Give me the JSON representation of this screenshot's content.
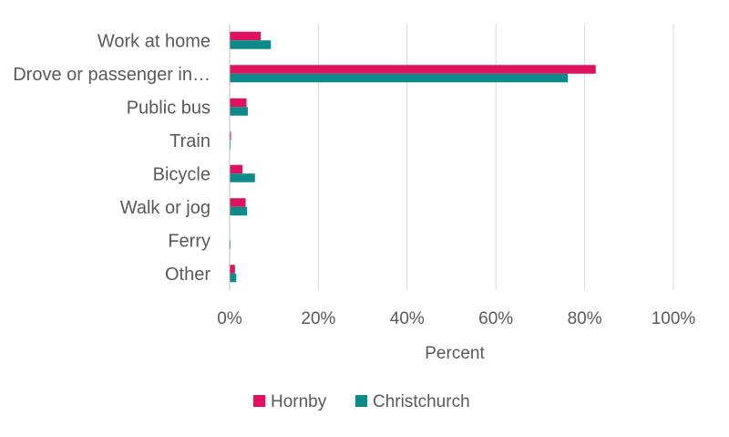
{
  "chart_data": {
    "type": "bar",
    "orientation": "horizontal",
    "categories": [
      "Work at home",
      "Drove or passenger in…",
      "Public bus",
      "Train",
      "Bicycle",
      "Walk or jog",
      "Ferry",
      "Other"
    ],
    "series": [
      {
        "name": "Hornby",
        "color": "#e0115f",
        "values": [
          7.0,
          82.5,
          3.8,
          0.3,
          2.9,
          3.6,
          0.0,
          1.2
        ]
      },
      {
        "name": "Christchurch",
        "color": "#0f8a8a",
        "values": [
          9.3,
          76.2,
          4.1,
          0.2,
          5.7,
          3.9,
          0.2,
          1.5
        ]
      }
    ],
    "xlabel": "Percent",
    "xlim": [
      0,
      100
    ],
    "xticks": [
      0,
      20,
      40,
      60,
      80,
      100
    ],
    "xtick_labels": [
      "0%",
      "20%",
      "40%",
      "60%",
      "80%",
      "100%"
    ],
    "grid": "vertical",
    "legend": "bottom"
  }
}
